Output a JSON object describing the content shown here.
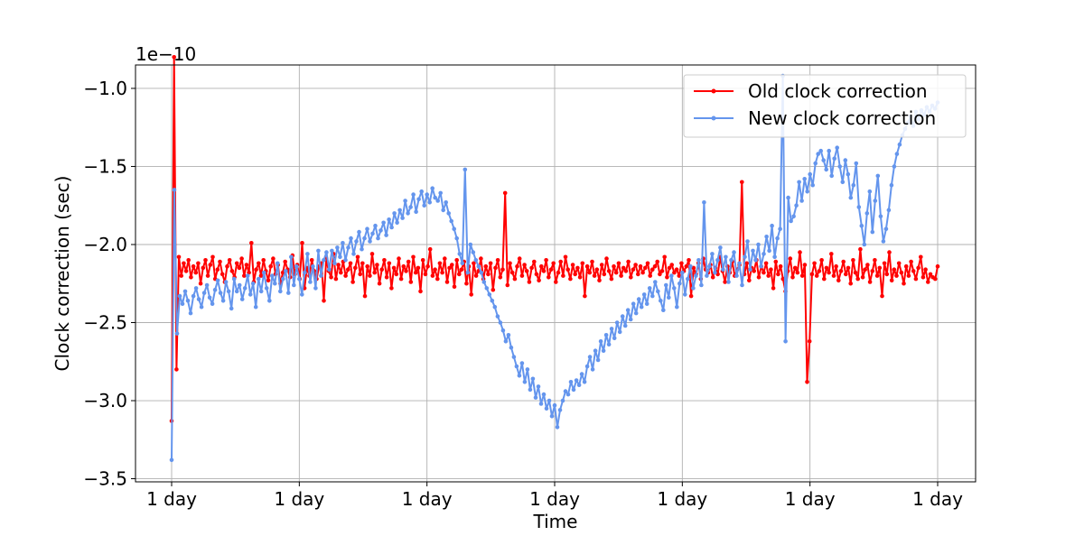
{
  "chart_data": {
    "type": "line",
    "title": "",
    "xlabel": "Time",
    "ylabel": "Clock correction (sec)",
    "offset_label": "1e−10",
    "x_ticks": [
      "1 day",
      "1 day",
      "1 day",
      "1 day",
      "1 day",
      "1 day",
      "1 day"
    ],
    "y_ticks": [
      "−1.0",
      "−1.5",
      "−2.0",
      "−2.5",
      "−3.0",
      "−3.5"
    ],
    "y_tick_values": [
      -1.0,
      -1.5,
      -2.0,
      -2.5,
      -3.0,
      -3.5
    ],
    "ylim": [
      -3.52,
      -0.85
    ],
    "y_scale": "1e-10",
    "grid": true,
    "legend_position": "upper right",
    "series": [
      {
        "name": "Old clock correction",
        "color": "#ff0000",
        "values": [
          -3.13,
          -0.8,
          -2.8,
          -2.08,
          -2.2,
          -2.12,
          -2.17,
          -2.1,
          -2.21,
          -2.14,
          -2.18,
          -2.12,
          -2.25,
          -2.15,
          -2.1,
          -2.2,
          -2.13,
          -2.08,
          -2.22,
          -2.16,
          -2.11,
          -2.19,
          -2.24,
          -2.14,
          -2.1,
          -2.17,
          -2.21,
          -2.12,
          -2.15,
          -2.09,
          -2.2,
          -2.13,
          -2.18,
          -1.99,
          -2.24,
          -2.16,
          -2.12,
          -2.2,
          -2.1,
          -2.17,
          -2.23,
          -2.14,
          -2.09,
          -2.19,
          -2.13,
          -2.25,
          -2.18,
          -2.11,
          -2.16,
          -2.21,
          -2.07,
          -2.19,
          -2.13,
          -2.22,
          -1.99,
          -2.28,
          -2.15,
          -2.2,
          -2.1,
          -2.17,
          -2.22,
          -2.14,
          -2.12,
          -2.36,
          -2.09,
          -2.17,
          -2.21,
          -2.06,
          -2.22,
          -2.13,
          -2.18,
          -2.11,
          -2.2,
          -2.16,
          -2.12,
          -2.24,
          -2.15,
          -2.08,
          -2.19,
          -2.12,
          -2.33,
          -2.14,
          -2.2,
          -2.06,
          -2.18,
          -2.13,
          -2.25,
          -2.16,
          -2.1,
          -2.21,
          -2.12,
          -2.28,
          -2.15,
          -2.19,
          -2.09,
          -2.22,
          -2.14,
          -2.17,
          -2.11,
          -2.24,
          -2.08,
          -2.18,
          -2.15,
          -2.3,
          -2.1,
          -2.19,
          -2.14,
          -2.03,
          -2.2,
          -2.16,
          -2.22,
          -2.12,
          -2.18,
          -2.09,
          -2.24,
          -2.15,
          -2.13,
          -2.27,
          -2.1,
          -2.19,
          -2.16,
          -2.11,
          -2.25,
          -2.14,
          -2.32,
          -2.12,
          -2.2,
          -2.17,
          -2.09,
          -2.22,
          -2.14,
          -2.19,
          -2.12,
          -2.29,
          -2.15,
          -2.1,
          -2.21,
          -2.16,
          -1.67,
          -2.26,
          -2.12,
          -2.18,
          -2.22,
          -2.14,
          -2.09,
          -2.2,
          -2.13,
          -2.17,
          -2.24,
          -2.15,
          -2.11,
          -2.19,
          -2.23,
          -2.14,
          -2.17,
          -2.1,
          -2.21,
          -2.16,
          -2.12,
          -2.24,
          -2.18,
          -2.11,
          -2.2,
          -2.08,
          -2.16,
          -2.22,
          -2.13,
          -2.19,
          -2.15,
          -2.21,
          -2.12,
          -2.33,
          -2.14,
          -2.18,
          -2.11,
          -2.2,
          -2.16,
          -2.23,
          -2.13,
          -2.19,
          -2.09,
          -2.17,
          -2.22,
          -2.14,
          -2.18,
          -2.12,
          -2.2,
          -2.15,
          -2.17,
          -2.11,
          -2.21,
          -2.16,
          -2.13,
          -2.19,
          -2.14,
          -2.18,
          -2.15,
          -2.12,
          -2.2,
          -2.16,
          -2.14,
          -2.11,
          -2.19,
          -2.17,
          -2.08,
          -2.21,
          -2.15,
          -2.13,
          -2.18,
          -2.16,
          -2.2,
          -2.12,
          -2.17,
          -2.14,
          -2.1,
          -2.33,
          -2.15,
          -2.19,
          -2.12,
          -2.22,
          -2.09,
          -2.16,
          -2.18,
          -2.13,
          -2.21,
          -2.15,
          -2.19,
          -2.08,
          -2.17,
          -2.24,
          -2.14,
          -2.18,
          -2.11,
          -2.2,
          -2.16,
          -2.13,
          -1.6,
          -2.19,
          -2.12,
          -2.23,
          -2.15,
          -2.17,
          -2.1,
          -2.21,
          -2.14,
          -2.18,
          -2.12,
          -2.2,
          -2.16,
          -2.28,
          -2.11,
          -2.19,
          -2.14,
          -2.22,
          -2.3,
          -2.17,
          -2.09,
          -2.21,
          -2.15,
          -2.18,
          -2.05,
          -2.2,
          -2.13,
          -2.88,
          -2.62,
          -2.19,
          -2.12,
          -2.2,
          -2.17,
          -2.1,
          -2.22,
          -2.15,
          -2.18,
          -2.06,
          -2.2,
          -2.14,
          -2.23,
          -2.17,
          -2.11,
          -2.19,
          -2.15,
          -2.25,
          -2.1,
          -2.18,
          -2.22,
          -2.03,
          -2.21,
          -2.16,
          -2.13,
          -2.24,
          -2.17,
          -2.1,
          -2.2,
          -2.15,
          -2.33,
          -2.12,
          -2.19,
          -2.05,
          -2.23,
          -2.16,
          -2.2,
          -2.12,
          -2.18,
          -2.25,
          -2.14,
          -2.2,
          -2.11,
          -2.17,
          -2.22,
          -2.15,
          -2.08,
          -2.21,
          -2.16,
          -2.24,
          -2.19,
          -2.21,
          -2.22,
          -2.14
        ]
      },
      {
        "name": "New clock correction",
        "color": "#6495ed",
        "values": [
          -3.38,
          -1.65,
          -2.57,
          -2.33,
          -2.38,
          -2.3,
          -2.36,
          -2.44,
          -2.33,
          -2.28,
          -2.35,
          -2.4,
          -2.31,
          -2.26,
          -2.34,
          -2.38,
          -2.29,
          -2.23,
          -2.31,
          -2.36,
          -2.24,
          -2.3,
          -2.41,
          -2.22,
          -2.3,
          -2.26,
          -2.35,
          -2.28,
          -2.2,
          -2.32,
          -2.25,
          -2.4,
          -2.22,
          -2.3,
          -2.18,
          -2.28,
          -2.36,
          -2.2,
          -2.25,
          -2.12,
          -2.3,
          -2.22,
          -2.17,
          -2.31,
          -2.08,
          -2.26,
          -2.14,
          -2.22,
          -2.32,
          -2.18,
          -2.06,
          -2.24,
          -2.14,
          -2.28,
          -2.04,
          -2.2,
          -2.1,
          -2.05,
          -2.16,
          -2.04,
          -2.12,
          -2.02,
          -2.08,
          -1.99,
          -2.1,
          -2.02,
          -1.96,
          -2.06,
          -1.98,
          -1.92,
          -2.03,
          -1.96,
          -1.9,
          -1.98,
          -1.93,
          -1.88,
          -1.96,
          -1.91,
          -1.86,
          -1.94,
          -1.84,
          -1.89,
          -1.8,
          -1.86,
          -1.78,
          -1.83,
          -1.72,
          -1.8,
          -1.76,
          -1.68,
          -1.79,
          -1.71,
          -1.66,
          -1.75,
          -1.68,
          -1.73,
          -1.64,
          -1.7,
          -1.72,
          -1.67,
          -1.78,
          -1.73,
          -1.8,
          -1.85,
          -1.9,
          -1.96,
          -2.06,
          -2.12,
          -1.52,
          -2.18,
          -2.0,
          -2.05,
          -2.1,
          -2.14,
          -2.18,
          -2.24,
          -2.28,
          -2.32,
          -2.36,
          -2.4,
          -2.46,
          -2.5,
          -2.55,
          -2.62,
          -2.58,
          -2.66,
          -2.72,
          -2.78,
          -2.84,
          -2.76,
          -2.88,
          -2.8,
          -2.93,
          -2.86,
          -2.98,
          -2.91,
          -3.02,
          -2.96,
          -3.05,
          -3.0,
          -3.1,
          -3.03,
          -3.17,
          -3.06,
          -3.0,
          -2.94,
          -2.96,
          -2.88,
          -2.93,
          -2.87,
          -2.9,
          -2.83,
          -2.88,
          -2.78,
          -2.72,
          -2.8,
          -2.68,
          -2.74,
          -2.62,
          -2.68,
          -2.58,
          -2.64,
          -2.54,
          -2.6,
          -2.5,
          -2.56,
          -2.46,
          -2.52,
          -2.42,
          -2.48,
          -2.38,
          -2.44,
          -2.35,
          -2.4,
          -2.32,
          -2.38,
          -2.28,
          -2.33,
          -2.24,
          -2.3,
          -2.36,
          -2.42,
          -2.26,
          -2.34,
          -2.2,
          -2.28,
          -2.4,
          -2.25,
          -2.18,
          -2.32,
          -2.22,
          -2.14,
          -2.28,
          -2.2,
          -2.1,
          -2.26,
          -1.73,
          -2.2,
          -2.14,
          -2.06,
          -2.18,
          -2.1,
          -2.02,
          -2.16,
          -2.08,
          -2.24,
          -2.1,
          -2.05,
          -2.2,
          -2.12,
          -2.26,
          -2.08,
          -1.98,
          -2.16,
          -2.04,
          -2.1,
          -2.0,
          -2.14,
          -2.06,
          -1.95,
          -2.04,
          -1.88,
          -2.08,
          -1.96,
          -1.9,
          -0.92,
          -2.62,
          -1.7,
          -1.85,
          -1.82,
          -1.75,
          -1.6,
          -1.72,
          -1.58,
          -1.66,
          -1.55,
          -1.62,
          -1.48,
          -1.42,
          -1.4,
          -1.46,
          -1.52,
          -1.4,
          -1.56,
          -1.45,
          -1.38,
          -1.5,
          -1.6,
          -1.46,
          -1.55,
          -1.7,
          -1.62,
          -1.48,
          -1.76,
          -1.88,
          -2.0,
          -1.8,
          -1.66,
          -1.92,
          -1.72,
          -1.56,
          -1.82,
          -1.98,
          -1.9,
          -1.78,
          -1.62,
          -1.5,
          -1.42,
          -1.36,
          -1.3,
          -1.26,
          -1.22,
          -1.18,
          -1.24,
          -1.15,
          -1.2,
          -1.14,
          -1.17,
          -1.12,
          -1.15,
          -1.11,
          -1.13,
          -1.09
        ]
      }
    ]
  }
}
